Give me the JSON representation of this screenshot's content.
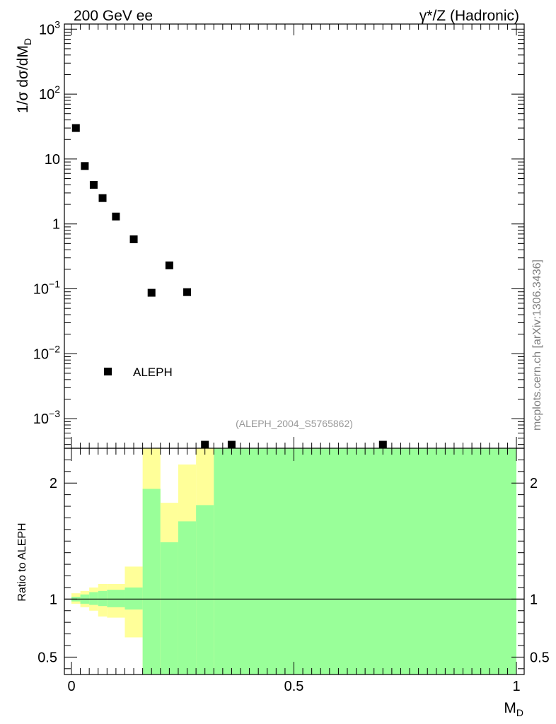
{
  "header": {
    "left": "200 GeV ee",
    "right": "γ*/Z (Hadronic)"
  },
  "watermark": "mcplots.cern.ch [arXiv:1306.3436]",
  "analysis_id": "(ALEPH_2004_S5765862)",
  "colors": {
    "marker": "#000000",
    "band_inner": "#99ff99",
    "band_outer": "#ffff99",
    "ratio_line": "#000000",
    "id_text": "#999999",
    "watermark_text": "#7f7f7f"
  },
  "chart_data": [
    {
      "type": "scatter",
      "name": "main",
      "ylabel": "1/σ dσ/dM_D",
      "yscale": "log",
      "ylim": [
        0.00035,
        1200
      ],
      "xlim": [
        -0.02,
        1.02
      ],
      "y_ticks": [
        {
          "value": 0.001,
          "base": "10",
          "exp": "−3"
        },
        {
          "value": 0.01,
          "base": "10",
          "exp": "−2"
        },
        {
          "value": 0.1,
          "base": "10",
          "exp": "−1"
        },
        {
          "value": 1,
          "text": "1"
        },
        {
          "value": 10,
          "text": "10"
        },
        {
          "value": 100,
          "base": "10",
          "exp": "2"
        },
        {
          "value": 1000,
          "base": "10",
          "exp": "3"
        }
      ],
      "legend": {
        "entry": "ALEPH",
        "position": "lower-left"
      },
      "series": [
        {
          "name": "ALEPH",
          "x": [
            0.01,
            0.03,
            0.05,
            0.07,
            0.1,
            0.14,
            0.18,
            0.22,
            0.26,
            0.3,
            0.36,
            0.7
          ],
          "y": [
            30,
            7.8,
            4.0,
            2.5,
            1.3,
            0.58,
            0.087,
            0.23,
            0.089,
            0.00036,
            0.00036,
            0.00036
          ]
        }
      ]
    },
    {
      "type": "area",
      "name": "ratio",
      "ylabel": "Ratio to ALEPH",
      "xlabel": "M_D",
      "ylim": [
        0.35,
        2.3
      ],
      "xlim": [
        -0.02,
        1.02
      ],
      "y_ticks": [
        0.5,
        1,
        2
      ],
      "y_tick_labels": [
        "0.5",
        "1",
        "2"
      ],
      "x_ticks": [
        0,
        0.5,
        1
      ],
      "x_tick_labels": [
        "0",
        "0.5",
        "1"
      ],
      "reference_line": 1,
      "bins": [
        {
          "lo": 0.0,
          "hi": 0.02,
          "inner": [
            0.98,
            1.02
          ],
          "outer": [
            0.96,
            1.05
          ]
        },
        {
          "lo": 0.02,
          "hi": 0.04,
          "inner": [
            0.96,
            1.04
          ],
          "outer": [
            0.93,
            1.07
          ]
        },
        {
          "lo": 0.04,
          "hi": 0.06,
          "inner": [
            0.95,
            1.06
          ],
          "outer": [
            0.9,
            1.1
          ]
        },
        {
          "lo": 0.06,
          "hi": 0.08,
          "inner": [
            0.94,
            1.07
          ],
          "outer": [
            0.85,
            1.13
          ]
        },
        {
          "lo": 0.08,
          "hi": 0.12,
          "inner": [
            0.93,
            1.08
          ],
          "outer": [
            0.84,
            1.13
          ]
        },
        {
          "lo": 0.12,
          "hi": 0.16,
          "inner": [
            0.91,
            1.1
          ],
          "outer": [
            0.67,
            1.28
          ]
        },
        {
          "lo": 0.16,
          "hi": 0.2,
          "inner": [
            0.35,
            1.95
          ],
          "outer": [
            0.35,
            2.3
          ]
        },
        {
          "lo": 0.2,
          "hi": 0.24,
          "inner": [
            0.35,
            1.49
          ],
          "outer": [
            0.35,
            1.83
          ]
        },
        {
          "lo": 0.24,
          "hi": 0.28,
          "inner": [
            0.35,
            1.67
          ],
          "outer": [
            0.35,
            2.16
          ]
        },
        {
          "lo": 0.28,
          "hi": 0.32,
          "inner": [
            0.35,
            1.81
          ],
          "outer": [
            0.35,
            2.3
          ]
        },
        {
          "lo": 0.32,
          "hi": 1.0,
          "inner": [
            0.35,
            2.3
          ],
          "outer": [
            0.35,
            2.3
          ]
        }
      ]
    }
  ]
}
